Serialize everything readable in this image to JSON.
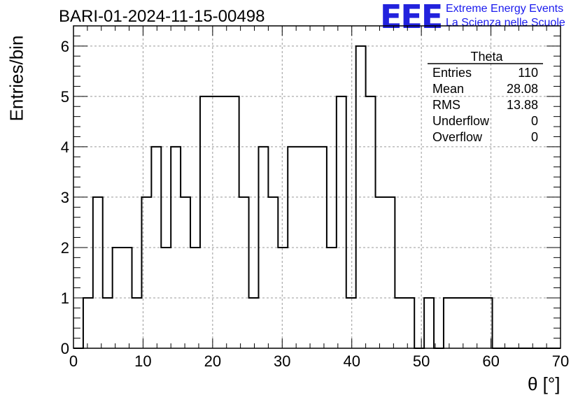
{
  "chart_data": {
    "type": "histogram",
    "title": "BARI-01-2024-11-15-00498",
    "xlabel": "θ [°]",
    "ylabel": "Entries/bin",
    "xlim": [
      0,
      70
    ],
    "ylim": [
      0,
      6.4
    ],
    "bin_width": 1.4,
    "x_ticks": [
      0,
      10,
      20,
      30,
      40,
      50,
      60,
      70
    ],
    "y_ticks": [
      0,
      1,
      2,
      3,
      4,
      5,
      6
    ],
    "grid": true,
    "values": [
      0,
      1,
      3,
      1,
      2,
      2,
      1,
      3,
      4,
      2,
      4,
      3,
      2,
      5,
      5,
      5,
      5,
      3,
      1,
      4,
      3,
      2,
      4,
      4,
      4,
      4,
      2,
      5,
      1,
      6,
      5,
      3,
      3,
      1,
      1,
      0,
      1,
      0,
      1,
      1,
      1,
      1,
      1,
      0,
      0,
      0,
      0,
      0,
      0,
      0
    ],
    "stats_box": {
      "title": "Theta",
      "rows": [
        {
          "label": "Entries",
          "value": "110"
        },
        {
          "label": "Mean",
          "value": "28.08"
        },
        {
          "label": "RMS",
          "value": "13.88"
        },
        {
          "label": "Underflow",
          "value": "0"
        },
        {
          "label": "Overflow",
          "value": "0"
        }
      ]
    }
  },
  "logo": {
    "mark": "EEE",
    "line1": "Extreme Energy Events",
    "line2": "La Scienza nelle Scuole",
    "color": "#2222dd"
  }
}
